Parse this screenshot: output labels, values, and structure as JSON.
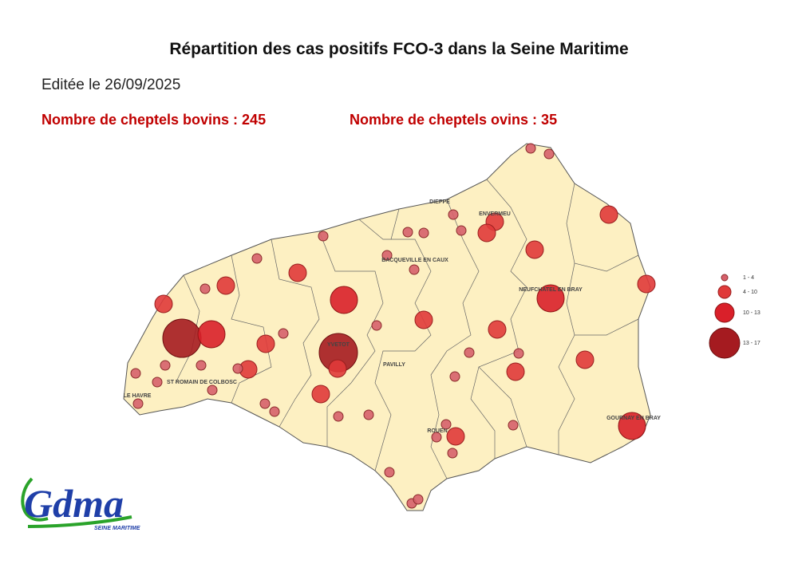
{
  "title": "Répartition des cas positifs FCO-3 dans la Seine Maritime",
  "edition": "Editée le 26/09/2025",
  "stats": [
    "Nombre de cheptels bovins : 245",
    "Nombre de cheptels ovins : 35"
  ],
  "places": [
    "DIEPPE",
    "ENVERMEU",
    "BACQUEVILLE EN CAUX",
    "NEUFCHATEL EN BRAY",
    "YVETOT",
    "PAVILLY",
    "ST ROMAIN DE COLBOSC",
    "LE HAVRE",
    "ROUEN",
    "GOURNAY EN BRAY"
  ],
  "legend": [
    "1 - 4",
    "4 - 10",
    "10 - 13",
    "13 - 17"
  ],
  "logo": {
    "name": "Gdma",
    "region": "SEINE MARITIME"
  }
}
